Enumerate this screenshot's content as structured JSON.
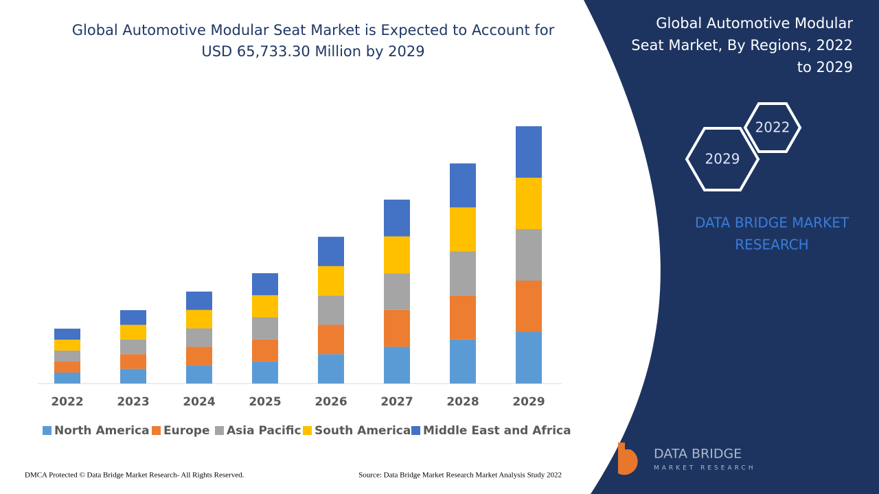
{
  "chart_data": {
    "type": "stacked-bar",
    "title": "Global Automotive Modular Seat Market is Expected to Account for USD 65,733.30 Million by 2029",
    "categories": [
      "2022",
      "2023",
      "2024",
      "2025",
      "2026",
      "2027",
      "2028",
      "2029"
    ],
    "series": [
      {
        "name": "North America",
        "color": "#5b9bd5",
        "values": [
          2805,
          3750,
          4700,
          5640,
          7500,
          9400,
          11250,
          13150
        ]
      },
      {
        "name": "Europe",
        "color": "#ed7d31",
        "values": [
          2805,
          3750,
          4700,
          5640,
          7500,
          9400,
          11250,
          13150
        ]
      },
      {
        "name": "Asia Pacific",
        "color": "#a5a5a5",
        "values": [
          2805,
          3750,
          4700,
          5640,
          7500,
          9400,
          11250,
          13150
        ]
      },
      {
        "name": "South America",
        "color": "#ffc000",
        "values": [
          2805,
          3750,
          4700,
          5640,
          7500,
          9400,
          11250,
          13150
        ]
      },
      {
        "name": "Middle East and Africa",
        "color": "#4472c4",
        "values": [
          2805,
          3750,
          4700,
          5640,
          7500,
          9400,
          11250,
          13150
        ]
      }
    ]
  },
  "panel": {
    "title": [
      "Global Automotive Modular",
      "Seat Market, By Regions, 2022",
      "to 2029"
    ],
    "hexagons": [
      "2022",
      "2029"
    ],
    "brand": [
      "DATA BRIDGE MARKET",
      "RESEARCH"
    ],
    "logo": [
      "DATA BRIDGE",
      "MARKET RESEARCH"
    ]
  },
  "footer": {
    "left": "DMCA Protected © Data Bridge Market Research- All Rights Reserved.",
    "right": "Source: Data Bridge Market Research Market Analysis Study 2022"
  }
}
